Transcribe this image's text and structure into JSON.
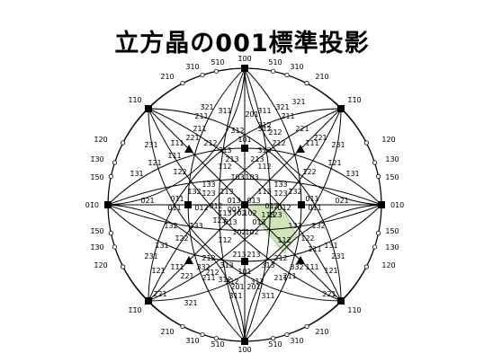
{
  "title": "立方晶の001標準投影",
  "colors": {
    "line": "#000000",
    "unit_triangle": "#cfe6b8",
    "background": "#ffffff"
  },
  "labels": {
    "top": "1̄00",
    "bottom": "100",
    "left": "01̄0",
    "right": "010",
    "center": "001",
    "u_100": "1̄10",
    "u_110": "1̄1̄0",
    "d_110": "1̄1̄0",
    "d_100": "110",
    "l11": "1̄11",
    "l11b": "1̄1̄1",
    "r11": "1̄11",
    "r11b": "111",
    "n1": "1̄01",
    "n2": "011",
    "n3": "101",
    "n4": "01̄1",
    "o1": "5̄10",
    "o2": "510",
    "o3": "3̄10",
    "o4": "310",
    "o5": "2̄10",
    "o6": "210",
    "o7": "1̄20",
    "o8": "120",
    "o9": "1̄30",
    "o10": "130",
    "o11": "1̄50",
    "o12": "150",
    "o13": "1̄20",
    "o14": "120",
    "o15": "2̄10",
    "o16": "210",
    "o17": "3̄10",
    "o18": "310",
    "o19": "5̄10",
    "o20": "510",
    "o21": "1̄50",
    "o22": "150",
    "o23": "1̄30",
    "o24": "130",
    "a1": "3̄21",
    "a2": "3̄21",
    "a3": "2̄11",
    "a4": "2̄11",
    "a5": "3̄11",
    "a6": "3̄11",
    "a7": "2̄01",
    "a8": "3̄12",
    "a9": "3̄12",
    "a10": "2̄21",
    "a11": "2̄21",
    "a12": "2̄12",
    "a13": "2̄12",
    "a14": "2̄31",
    "a15": "2̄31",
    "a16": "1̄21",
    "a17": "1̄21",
    "a18": "1̄22",
    "a19": "1̄22",
    "a20": "1̄31",
    "a21": "1̄31",
    "a22": "1̄32",
    "a23": "1̄32",
    "a24": "0̄21",
    "a25": "021",
    "a26": "1̄33",
    "a27": "1̄33",
    "a28": "1̄23",
    "a29": "1̄23",
    "a30": "1̄13",
    "a31": "113",
    "a32": "1̄03",
    "a33": "103",
    "a34": "0̄13",
    "a35": "013",
    "a36": "0̄12",
    "a37": "012",
    "a38": "1̄12",
    "a39": "112",
    "a40": "2̄13",
    "a41": "213",
    "a42": "3̄13",
    "a43": "313",
    "a44": "1̄02",
    "a45": "102",
    "a46": "3̄32",
    "a47": "332",
    "a48": "3̄11",
    "a49": "311",
    "a50": "2̄01",
    "a51": "201",
    "a52": "3̄12",
    "a53": "312",
    "a54": "2̄12",
    "a55": "212",
    "a56": "2̄11",
    "a57": "211",
    "a58": "2̄21",
    "a59": "221",
    "a60": "2̄31",
    "a61": "231",
    "a62": "1̄31",
    "a63": "131",
    "a64": "1̄32",
    "a65": "132",
    "a66": "1̄22",
    "a67": "122",
    "a68": "1̄21",
    "a69": "121",
    "a70": "0̄11",
    "a71": "011",
    "a72": "1̄11",
    "a73": "111",
    "a74": "2̄11",
    "a75": "211",
    "a76": "3̄21",
    "a77": "321",
    "a78": "2̄21",
    "a79": "221",
    "a80": "1̄13",
    "a81": "113",
    "a82": "1̄23",
    "a83": "123",
    "a84": "1̄33",
    "a85": "133",
    "a86": "1̄12",
    "a87": "112",
    "a88": "1̄02",
    "a89": "102",
    "a90": "3̄12",
    "a91": "312",
    "a92": "2̄13",
    "a93": "213",
    "a94": "3̄13",
    "a95": "313",
    "a96": "2̄12",
    "a97": "212",
    "a98": "0̄12",
    "a99": "012",
    "a100": "0̄13",
    "a101": "013"
  }
}
